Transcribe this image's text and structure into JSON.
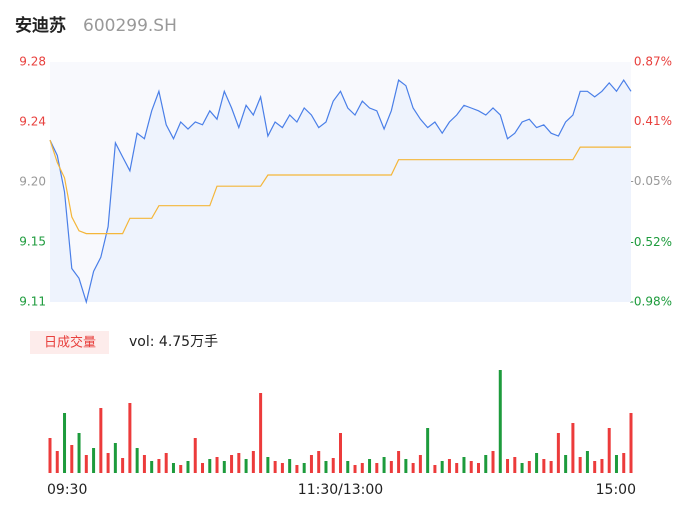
{
  "chart_data": [
    {
      "type": "line",
      "title": "安迪苏",
      "subtitle": "600299.SH",
      "xlim": [
        0,
        80
      ],
      "ylim": [
        9.111,
        9.283
      ],
      "yticks": [
        {
          "value": 9.283,
          "label": "9.28"
        },
        {
          "value": 9.24,
          "label": "9.24"
        },
        {
          "value": 9.197,
          "label": "9.20"
        },
        {
          "value": 9.154,
          "label": "9.15"
        },
        {
          "value": 9.111,
          "label": "9.11"
        }
      ],
      "ytick_colors": [
        "#e8413e",
        "#e8413e",
        "#999999",
        "#1d9b3c",
        "#1d9b3c"
      ],
      "y2lim": [
        -0.98,
        0.87
      ],
      "y2ticks": [
        {
          "value": 0.87,
          "label": "0.87%"
        },
        {
          "value": 0.41,
          "label": "0.41%"
        },
        {
          "value": -0.05,
          "label": "-0.05%"
        },
        {
          "value": -0.52,
          "label": "-0.52%"
        },
        {
          "value": -0.98,
          "label": "-0.98%"
        }
      ],
      "series": [
        {
          "color": "#4a7fe8",
          "area": true,
          "values": [
            9.227,
            9.216,
            9.19,
            9.135,
            9.128,
            9.111,
            9.133,
            9.143,
            9.165,
            9.225,
            9.215,
            9.205,
            9.232,
            9.228,
            9.248,
            9.262,
            9.238,
            9.228,
            9.24,
            9.235,
            9.24,
            9.238,
            9.248,
            9.242,
            9.262,
            9.25,
            9.236,
            9.252,
            9.245,
            9.258,
            9.23,
            9.24,
            9.236,
            9.245,
            9.24,
            9.25,
            9.245,
            9.236,
            9.24,
            9.255,
            9.262,
            9.25,
            9.245,
            9.255,
            9.25,
            9.248,
            9.235,
            9.248,
            9.27,
            9.266,
            9.25,
            9.242,
            9.236,
            9.24,
            9.232,
            9.24,
            9.245,
            9.252,
            9.25,
            9.248,
            9.245,
            9.25,
            9.245,
            9.228,
            9.232,
            9.24,
            9.242,
            9.236,
            9.238,
            9.232,
            9.23,
            9.24,
            9.245,
            9.262,
            9.262,
            9.258,
            9.262,
            9.268,
            9.262,
            9.27,
            9.262
          ]
        },
        {
          "color": "#f4b63a",
          "area": false,
          "values": [
            9.227,
            9.211,
            9.2,
            9.172,
            9.162,
            9.16,
            9.16,
            9.16,
            9.16,
            9.16,
            9.16,
            9.171,
            9.171,
            9.171,
            9.171,
            9.18,
            9.18,
            9.18,
            9.18,
            9.18,
            9.18,
            9.18,
            9.18,
            9.194,
            9.194,
            9.194,
            9.194,
            9.194,
            9.194,
            9.194,
            9.202,
            9.202,
            9.202,
            9.202,
            9.202,
            9.202,
            9.202,
            9.202,
            9.202,
            9.202,
            9.202,
            9.202,
            9.202,
            9.202,
            9.202,
            9.202,
            9.202,
            9.202,
            9.213,
            9.213,
            9.213,
            9.213,
            9.213,
            9.213,
            9.213,
            9.213,
            9.213,
            9.213,
            9.213,
            9.213,
            9.213,
            9.213,
            9.213,
            9.213,
            9.213,
            9.213,
            9.213,
            9.213,
            9.213,
            9.213,
            9.213,
            9.213,
            9.213,
            9.222,
            9.222,
            9.222,
            9.222,
            9.222,
            9.222,
            9.222,
            9.222
          ]
        }
      ]
    },
    {
      "type": "bar",
      "label": "日成交量",
      "summary": "vol: 4.75万手",
      "xlim": [
        0,
        80
      ],
      "ylim": [
        0,
        103
      ],
      "xticks": [
        {
          "value": 0,
          "label": "09:30"
        },
        {
          "value": 40,
          "label": "11:30/13:00"
        },
        {
          "value": 80,
          "label": "15:00"
        }
      ],
      "colors": {
        "up": "#ec3b3b",
        "down": "#1d9b3c"
      },
      "values": [
        35,
        22,
        60,
        28,
        40,
        18,
        25,
        65,
        20,
        30,
        15,
        70,
        25,
        18,
        12,
        14,
        20,
        10,
        8,
        12,
        35,
        10,
        14,
        16,
        12,
        18,
        20,
        14,
        22,
        80,
        16,
        12,
        10,
        14,
        8,
        10,
        18,
        22,
        12,
        15,
        40,
        12,
        8,
        10,
        14,
        10,
        16,
        12,
        22,
        14,
        10,
        18,
        45,
        8,
        12,
        14,
        10,
        16,
        12,
        10,
        18,
        22,
        103,
        14,
        16,
        10,
        12,
        20,
        14,
        12,
        40,
        18,
        50,
        16,
        22,
        12,
        14,
        45,
        18,
        20,
        60
      ],
      "directions": [
        "up",
        "up",
        "down",
        "up",
        "down",
        "up",
        "down",
        "up",
        "up",
        "down",
        "up",
        "up",
        "down",
        "up",
        "down",
        "up",
        "up",
        "down",
        "up",
        "down",
        "up",
        "up",
        "down",
        "up",
        "down",
        "up",
        "up",
        "down",
        "up",
        "up",
        "down",
        "up",
        "up",
        "down",
        "up",
        "down",
        "up",
        "up",
        "down",
        "up",
        "up",
        "down",
        "up",
        "up",
        "down",
        "up",
        "down",
        "up",
        "up",
        "down",
        "up",
        "up",
        "down",
        "up",
        "down",
        "up",
        "up",
        "down",
        "up",
        "up",
        "down",
        "up",
        "down",
        "up",
        "up",
        "down",
        "up",
        "down",
        "up",
        "up",
        "up",
        "down",
        "up",
        "up",
        "down",
        "up",
        "up",
        "up",
        "down",
        "up",
        "up"
      ]
    }
  ]
}
